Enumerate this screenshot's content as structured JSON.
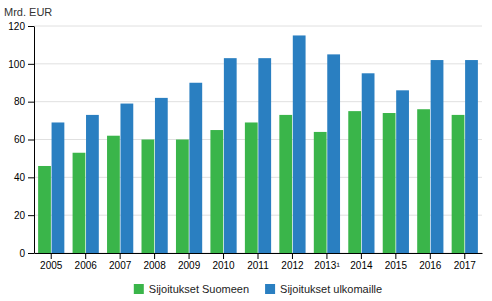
{
  "chart_data": {
    "type": "bar",
    "ylabel": "Mrd. EUR",
    "categories": [
      "2005",
      "2006",
      "2007",
      "2008",
      "2009",
      "2010",
      "2011",
      "2012",
      "2013¹",
      "2014",
      "2015",
      "2016",
      "2017"
    ],
    "series": [
      {
        "name": "Sijoitukset Suomeen",
        "color": "#3ab54a",
        "values": [
          46,
          53,
          62,
          60,
          60,
          65,
          69,
          73,
          64,
          75,
          74,
          76,
          73
        ]
      },
      {
        "name": "Sijoitukset ulkomaille",
        "color": "#2a7fc1",
        "values": [
          69,
          73,
          79,
          82,
          90,
          103,
          103,
          115,
          105,
          95,
          86,
          102,
          102
        ]
      }
    ],
    "ylim": [
      0,
      120
    ],
    "yticks": [
      0,
      20,
      40,
      60,
      80,
      100,
      120
    ],
    "grid": true,
    "legend": "bottom"
  }
}
